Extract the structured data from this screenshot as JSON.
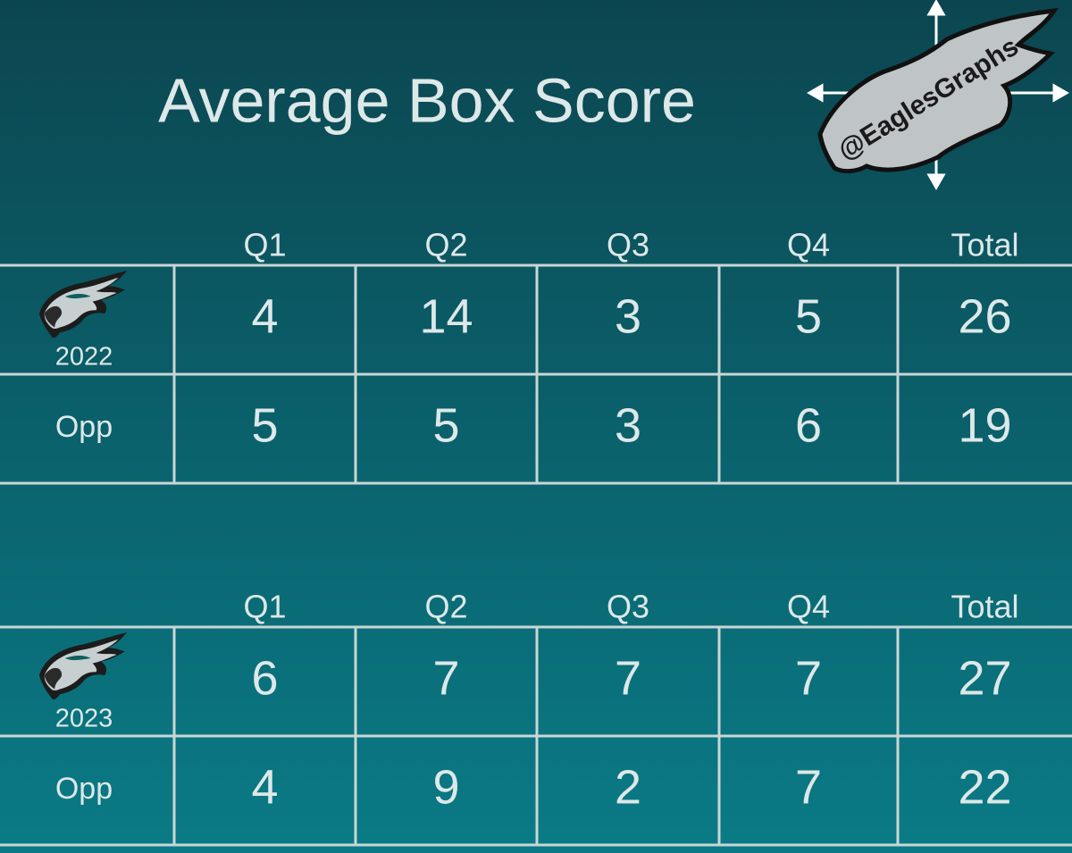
{
  "header": {
    "title": "Average Box Score",
    "logo_text": "@EaglesGraphs"
  },
  "tables": [
    {
      "columns": [
        "Q1",
        "Q2",
        "Q3",
        "Q4",
        "Total"
      ],
      "rows": [
        {
          "label": "2022",
          "values": [
            4,
            14,
            3,
            5,
            26
          ]
        },
        {
          "label": "Opp",
          "values": [
            5,
            5,
            3,
            6,
            19
          ]
        }
      ]
    },
    {
      "columns": [
        "Q1",
        "Q2",
        "Q3",
        "Q4",
        "Total"
      ],
      "rows": [
        {
          "label": "2023",
          "values": [
            6,
            7,
            7,
            7,
            27
          ]
        },
        {
          "label": "Opp",
          "values": [
            4,
            9,
            2,
            7,
            22
          ]
        }
      ]
    }
  ]
}
